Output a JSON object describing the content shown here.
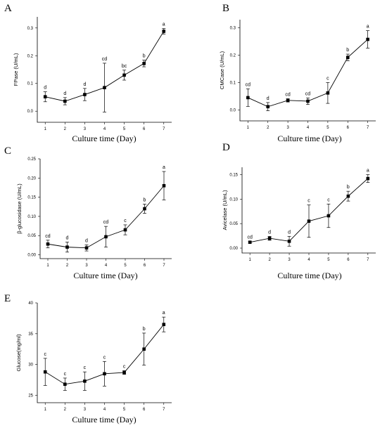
{
  "chart_data": [
    {
      "type": "line",
      "panel_label": "A",
      "xlabel": "Culture time (Day)",
      "ylabel": "FPase (U/mL)",
      "x": [
        1,
        2,
        3,
        4,
        5,
        6,
        7
      ],
      "xticks": [
        "1",
        "2",
        "3",
        "4",
        "5",
        "6",
        "7"
      ],
      "xlim": [
        0.6,
        7.4
      ],
      "ylim": [
        -0.04,
        0.34
      ],
      "yticks": [
        "0.0",
        "0.1",
        "0.2",
        "0.3"
      ],
      "ytick_values": [
        0,
        0.1,
        0.2,
        0.3
      ],
      "series": [
        {
          "values": [
            0.052,
            0.036,
            0.06,
            0.085,
            0.13,
            0.172,
            0.288
          ],
          "errors": [
            0.018,
            0.013,
            0.022,
            0.088,
            0.018,
            0.012,
            0.01
          ],
          "letters": [
            "d",
            "d",
            "d",
            "cd",
            "bc",
            "b",
            "a"
          ]
        }
      ]
    },
    {
      "type": "line",
      "panel_label": "B",
      "xlabel": "Culture time (Day)",
      "ylabel": "CMCase (U/mL)",
      "x": [
        1,
        2,
        3,
        4,
        5,
        6,
        7
      ],
      "xticks": [
        "1",
        "2",
        "3",
        "4",
        "5",
        "6",
        "7"
      ],
      "xlim": [
        0.6,
        7.4
      ],
      "ylim": [
        -0.04,
        0.33
      ],
      "yticks": [
        "0.0",
        "0.1",
        "0.2",
        "0.3"
      ],
      "ytick_values": [
        0,
        0.1,
        0.2,
        0.3
      ],
      "series": [
        {
          "values": [
            0.045,
            0.012,
            0.035,
            0.032,
            0.062,
            0.192,
            0.258
          ],
          "errors": [
            0.032,
            0.015,
            0.006,
            0.012,
            0.038,
            0.012,
            0.032
          ],
          "letters": [
            "cd",
            "d",
            "cd",
            "cd",
            "c",
            "b",
            "a"
          ]
        }
      ]
    },
    {
      "type": "line",
      "panel_label": "C",
      "xlabel": "Culture time (Day)",
      "ylabel": "β-glucosidase (U/mL)",
      "x": [
        1,
        2,
        3,
        4,
        5,
        6,
        7
      ],
      "xticks": [
        "1",
        "2",
        "3",
        "4",
        "5",
        "6",
        "7"
      ],
      "xlim": [
        0.6,
        7.4
      ],
      "ylim": [
        -0.01,
        0.25
      ],
      "yticks": [
        "0.00",
        "0.05",
        "0.10",
        "0.15",
        "0.20",
        "0.25"
      ],
      "ytick_values": [
        0,
        0.05,
        0.1,
        0.15,
        0.2,
        0.25
      ],
      "series": [
        {
          "values": [
            0.028,
            0.02,
            0.018,
            0.047,
            0.065,
            0.12,
            0.18
          ],
          "errors": [
            0.01,
            0.013,
            0.008,
            0.027,
            0.013,
            0.012,
            0.037
          ],
          "letters": [
            "cd",
            "d",
            "d",
            "cd",
            "c",
            "b",
            "a"
          ]
        }
      ]
    },
    {
      "type": "line",
      "panel_label": "D",
      "xlabel": "Culture time (Day)",
      "ylabel": "Avicelase (U/mL)",
      "x": [
        1,
        2,
        3,
        4,
        5,
        6,
        7
      ],
      "xticks": [
        "1",
        "2",
        "3",
        "4",
        "5",
        "6",
        "7"
      ],
      "xlim": [
        0.6,
        7.4
      ],
      "ylim": [
        -0.01,
        0.165
      ],
      "yticks": [
        "0.00",
        "0.05",
        "0.10",
        "0.15"
      ],
      "ytick_values": [
        0,
        0.05,
        0.1,
        0.15
      ],
      "series": [
        {
          "values": [
            0.012,
            0.02,
            0.014,
            0.055,
            0.066,
            0.106,
            0.142
          ],
          "errors": [
            0.002,
            0.004,
            0.01,
            0.033,
            0.024,
            0.01,
            0.008
          ],
          "letters": [
            "cd",
            "d",
            "d",
            "c",
            "c",
            "b",
            "a"
          ]
        }
      ]
    },
    {
      "type": "line",
      "panel_label": "E",
      "xlabel": "Culture time (Day)",
      "ylabel": "Glucose(mg/ml)",
      "x": [
        1,
        2,
        3,
        4,
        5,
        6,
        7
      ],
      "xticks": [
        "1",
        "2",
        "3",
        "4",
        "5",
        "6",
        "7"
      ],
      "xlim": [
        0.6,
        7.4
      ],
      "ylim": [
        23.8,
        40
      ],
      "yticks": [
        "25",
        "30",
        "35",
        "40"
      ],
      "ytick_values": [
        25,
        30,
        35,
        40
      ],
      "series": [
        {
          "values": [
            28.8,
            26.8,
            27.3,
            28.5,
            28.7,
            32.5,
            36.5
          ],
          "errors": [
            2.2,
            1.0,
            1.5,
            2.0,
            0.3,
            2.6,
            1.2
          ],
          "letters": [
            "c",
            "c",
            "c",
            "c",
            "c",
            "b",
            "a"
          ]
        }
      ]
    }
  ]
}
